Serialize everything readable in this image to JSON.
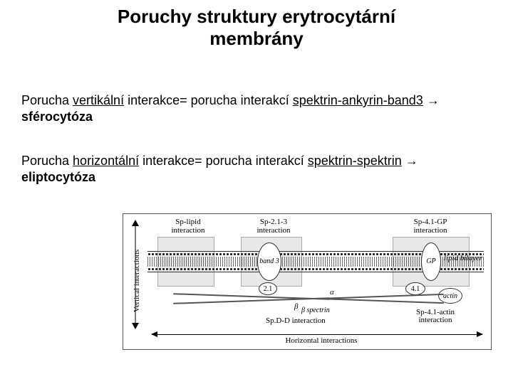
{
  "title_line1": "Poruchy struktury erytrocytární",
  "title_line2": "membrány",
  "para1": {
    "lead": "Porucha ",
    "u1": "vertikální",
    "mid1": " interakce= porucha interakcí ",
    "u2": "spektrin-ankyrin-band3",
    "arrow": " →",
    "b1": "sférocytóza"
  },
  "para2": {
    "lead": "Porucha ",
    "u1": "horizontální",
    "mid1": " interakce= porucha interakcí ",
    "u2": "spektrin-spektrin",
    "arrow": " →",
    "b1": "eliptocytóza"
  },
  "diagram": {
    "vaxis": "Vertical interactions",
    "haxis": "Horizontal interactions",
    "top_labels": {
      "l1a": "Sp-lipid",
      "l1b": "interaction",
      "l2a": "Sp-2.1-3",
      "l2b": "interaction",
      "l3a": "Sp-4.1-GP",
      "l3b": "interaction"
    },
    "bottom_labels": {
      "b1": "Sp.D-D interaction",
      "b2a": "Sp-4.1-actin",
      "b2b": "interaction"
    },
    "proteins": {
      "band3": "band 3",
      "gp": "GP",
      "actin": "actin",
      "b21": "2.1",
      "b41": "4.1",
      "lipid": "lipid bilayer",
      "alpha": "α",
      "beta": "β",
      "spectrin_lbl": "β spectrin"
    }
  }
}
